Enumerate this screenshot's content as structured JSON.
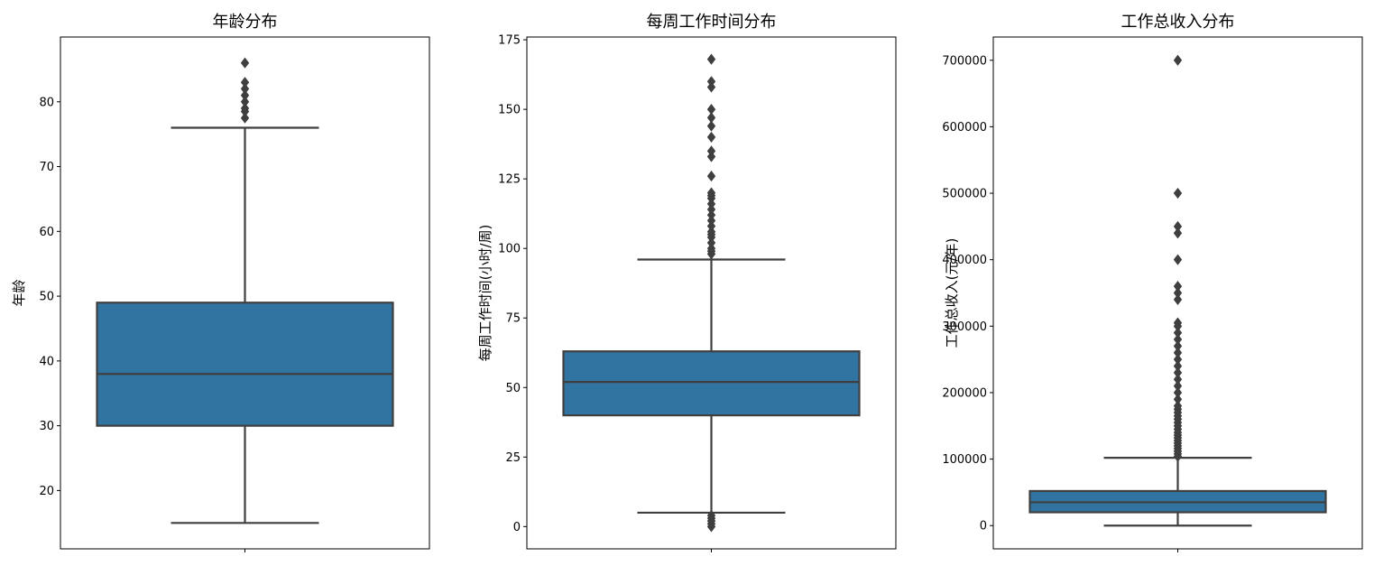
{
  "chart_data": [
    {
      "type": "box",
      "title": "年龄分布",
      "ylabel": "年龄",
      "ylim": [
        11,
        90
      ],
      "yticks": [
        20,
        30,
        40,
        50,
        60,
        70,
        80
      ],
      "ytick_labels": [
        "20",
        "30",
        "40",
        "50",
        "60",
        "70",
        "80"
      ],
      "box": {
        "whisker_low": 15,
        "q1": 30,
        "median": 38,
        "q3": 49,
        "whisker_high": 76
      },
      "outliers": [
        77.5,
        78.5,
        79,
        80,
        81,
        82,
        83,
        86
      ],
      "color": "#3274a1",
      "edge_color": "#3f3f3f"
    },
    {
      "type": "box",
      "title": "每周工作时间分布",
      "ylabel": "每周工作时间(小时/周)",
      "ylim": [
        -8,
        176
      ],
      "yticks": [
        0,
        25,
        50,
        75,
        100,
        125,
        150,
        175
      ],
      "ytick_labels": [
        "0",
        "25",
        "50",
        "75",
        "100",
        "125",
        "150",
        "175"
      ],
      "box": {
        "whisker_low": 5,
        "q1": 40,
        "median": 52,
        "q3": 63,
        "whisker_high": 96
      },
      "outliers": [
        0,
        1,
        2,
        3,
        4,
        98,
        99,
        100,
        102,
        104,
        105,
        106,
        108,
        110,
        112,
        114,
        116,
        118,
        119,
        120,
        126,
        133,
        135,
        140,
        144,
        147,
        150,
        158,
        160,
        168
      ],
      "color": "#3274a1",
      "edge_color": "#3f3f3f"
    },
    {
      "type": "box",
      "title": "工作总收入分布",
      "ylabel": "工作总收入(元/年)",
      "ylim": [
        -35000,
        735000
      ],
      "yticks": [
        0,
        100000,
        200000,
        300000,
        400000,
        500000,
        600000,
        700000
      ],
      "ytick_labels": [
        "0",
        "100000",
        "200000",
        "300000",
        "400000",
        "500000",
        "600000",
        "700000"
      ],
      "box": {
        "whisker_low": 0,
        "q1": 20000,
        "median": 35000,
        "q3": 52000,
        "whisker_high": 102000
      },
      "outliers": [
        104000,
        108000,
        112000,
        116000,
        120000,
        124000,
        128000,
        132000,
        136000,
        140000,
        145000,
        150000,
        155000,
        160000,
        165000,
        170000,
        175000,
        180000,
        190000,
        200000,
        210000,
        220000,
        230000,
        240000,
        250000,
        260000,
        270000,
        280000,
        290000,
        300000,
        305000,
        340000,
        350000,
        360000,
        400000,
        440000,
        450000,
        500000,
        700000
      ],
      "color": "#3274a1",
      "edge_color": "#3f3f3f"
    }
  ]
}
